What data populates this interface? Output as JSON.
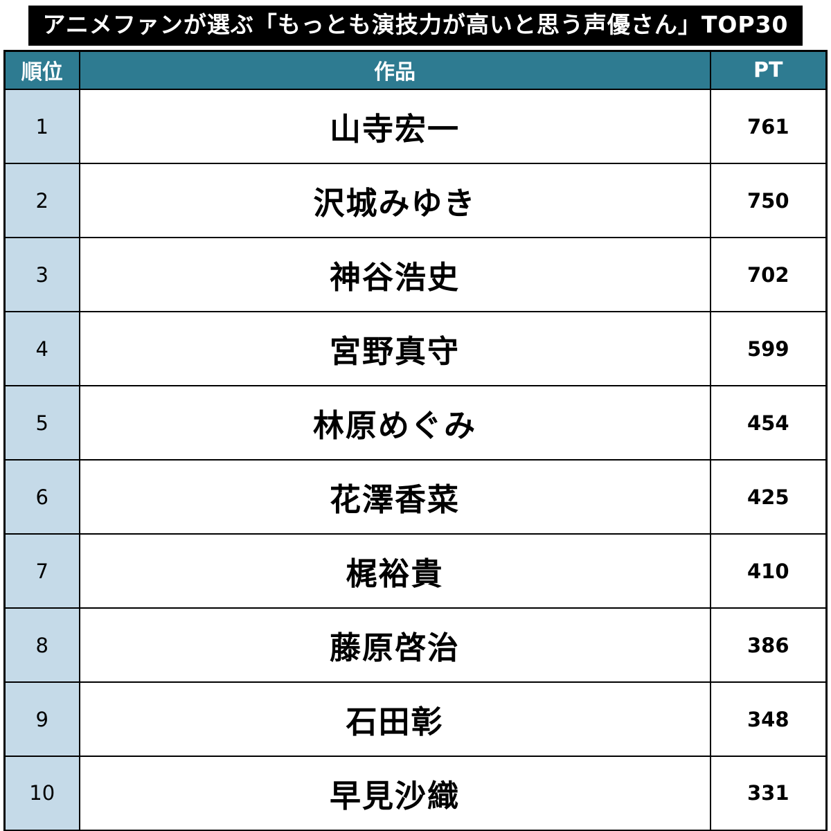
{
  "title": "アニメファンが選ぶ「もっとも演技力が高いと思う声優さん」TOP30",
  "chart_data": {
    "type": "table",
    "title": "アニメファンが選ぶ「もっとも演技力が高いと思う声優さん」TOP30",
    "columns": [
      "順位",
      "作品",
      "PT"
    ],
    "rows": [
      {
        "rank": "1",
        "name": "山寺宏一",
        "points": "761"
      },
      {
        "rank": "2",
        "name": "沢城みゆき",
        "points": "750"
      },
      {
        "rank": "3",
        "name": "神谷浩史",
        "points": "702"
      },
      {
        "rank": "4",
        "name": "宮野真守",
        "points": "599"
      },
      {
        "rank": "5",
        "name": "林原めぐみ",
        "points": "454"
      },
      {
        "rank": "6",
        "name": "花澤香菜",
        "points": "425"
      },
      {
        "rank": "7",
        "name": "梶裕貴",
        "points": "410"
      },
      {
        "rank": "8",
        "name": "藤原啓治",
        "points": "386"
      },
      {
        "rank": "9",
        "name": "石田彰",
        "points": "348"
      },
      {
        "rank": "10",
        "name": "早見沙織",
        "points": "331"
      }
    ]
  },
  "colors": {
    "title_bg": "#000000",
    "title_text": "#FFFFFF",
    "header_bg": "#2E7B91",
    "header_text": "#FFFFFF",
    "rank_bg": "#C5DAE8",
    "row_bg": "#FFFFFF",
    "border": "#000000",
    "text": "#000000"
  }
}
